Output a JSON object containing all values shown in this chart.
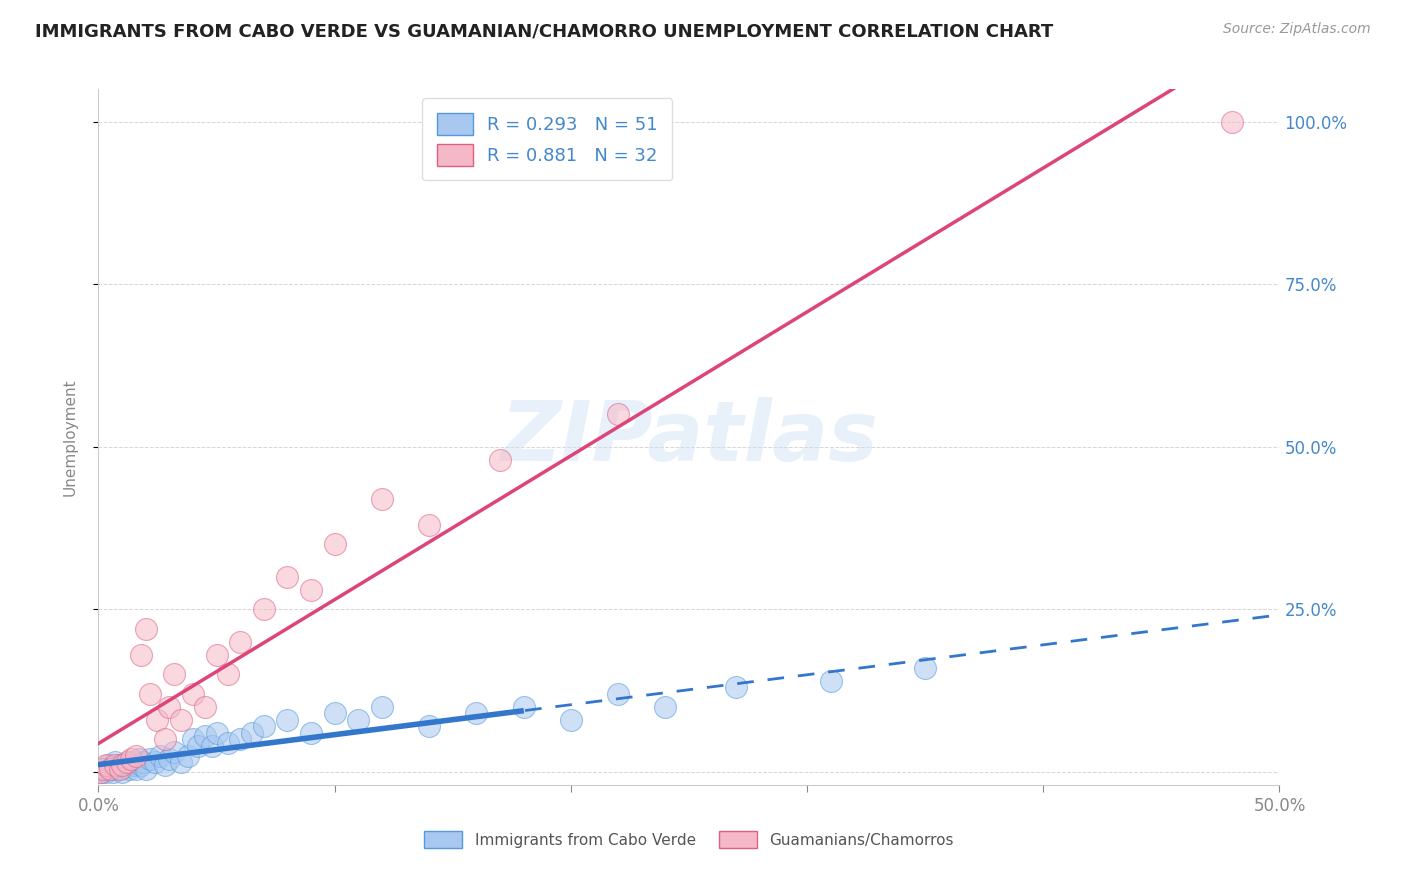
{
  "title": "IMMIGRANTS FROM CABO VERDE VS GUAMANIAN/CHAMORRO UNEMPLOYMENT CORRELATION CHART",
  "source": "Source: ZipAtlas.com",
  "ylabel": "Unemployment",
  "xlim": [
    0.0,
    0.5
  ],
  "ylim": [
    -0.02,
    1.05
  ],
  "blue_color": "#a8c8f0",
  "pink_color": "#f5b8c8",
  "blue_edge_color": "#5599dd",
  "pink_edge_color": "#e06080",
  "blue_line_color": "#3377cc",
  "pink_line_color": "#dd4477",
  "R_blue": 0.293,
  "N_blue": 51,
  "R_pink": 0.881,
  "N_pink": 32,
  "legend_label_blue": "Immigrants from Cabo Verde",
  "legend_label_pink": "Guamanians/Chamorros",
  "watermark": "ZIPatlas",
  "background_color": "#ffffff",
  "blue_text_color": "#4488cc",
  "grid_color": "#cccccc",
  "axis_label_color": "#888888",
  "right_tick_color": "#4488cc",
  "blue_scatter_x": [
    0.001,
    0.002,
    0.003,
    0.004,
    0.005,
    0.006,
    0.007,
    0.008,
    0.009,
    0.01,
    0.011,
    0.012,
    0.013,
    0.014,
    0.015,
    0.016,
    0.017,
    0.018,
    0.019,
    0.02,
    0.022,
    0.024,
    0.026,
    0.028,
    0.03,
    0.032,
    0.035,
    0.038,
    0.04,
    0.042,
    0.045,
    0.048,
    0.05,
    0.055,
    0.06,
    0.065,
    0.07,
    0.08,
    0.09,
    0.1,
    0.11,
    0.12,
    0.14,
    0.16,
    0.18,
    0.2,
    0.22,
    0.24,
    0.27,
    0.31,
    0.35
  ],
  "blue_scatter_y": [
    0.0,
    0.005,
    0.0,
    0.01,
    0.005,
    0.0,
    0.015,
    0.005,
    0.01,
    0.0,
    0.008,
    0.012,
    0.005,
    0.015,
    0.01,
    0.005,
    0.02,
    0.01,
    0.015,
    0.005,
    0.02,
    0.015,
    0.025,
    0.01,
    0.02,
    0.03,
    0.015,
    0.025,
    0.05,
    0.04,
    0.055,
    0.04,
    0.06,
    0.045,
    0.05,
    0.06,
    0.07,
    0.08,
    0.06,
    0.09,
    0.08,
    0.1,
    0.07,
    0.09,
    0.1,
    0.08,
    0.12,
    0.1,
    0.13,
    0.14,
    0.16
  ],
  "pink_scatter_x": [
    0.001,
    0.002,
    0.003,
    0.005,
    0.007,
    0.009,
    0.01,
    0.012,
    0.014,
    0.016,
    0.018,
    0.02,
    0.022,
    0.025,
    0.028,
    0.03,
    0.032,
    0.035,
    0.04,
    0.045,
    0.05,
    0.055,
    0.06,
    0.07,
    0.08,
    0.09,
    0.1,
    0.12,
    0.14,
    0.17,
    0.22,
    0.48
  ],
  "pink_scatter_y": [
    0.0,
    0.005,
    0.01,
    0.005,
    0.01,
    0.005,
    0.01,
    0.015,
    0.02,
    0.025,
    0.18,
    0.22,
    0.12,
    0.08,
    0.05,
    0.1,
    0.15,
    0.08,
    0.12,
    0.1,
    0.18,
    0.15,
    0.2,
    0.25,
    0.3,
    0.28,
    0.35,
    0.42,
    0.38,
    0.48,
    0.55,
    1.0
  ]
}
